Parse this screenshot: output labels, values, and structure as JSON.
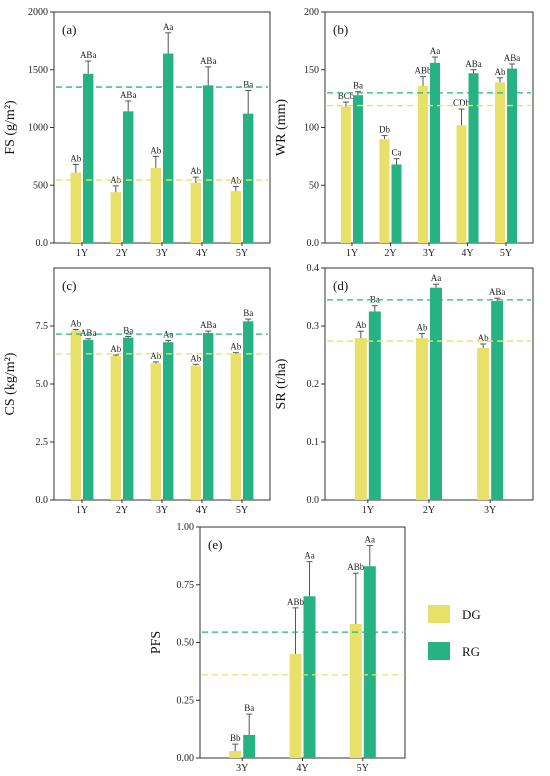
{
  "colors": {
    "DG": "#e7e16a",
    "RG": "#27b283",
    "axis": "#333333",
    "error": "#555555"
  },
  "legend": {
    "items": [
      {
        "key": "DG",
        "label": "DG",
        "color": "#e7e16a"
      },
      {
        "key": "RG",
        "label": "RG",
        "color": "#27b283"
      }
    ]
  },
  "chart_data": [
    {
      "panel": "(a)",
      "type": "bar",
      "ylabel": "FS (g/m²)",
      "categories": [
        "1Y",
        "2Y",
        "3Y",
        "4Y",
        "5Y"
      ],
      "ylim": [
        0,
        2000
      ],
      "yticks": [
        0,
        500,
        1000,
        1500,
        2000
      ],
      "ytick_labels": [
        "0.0",
        "500",
        "1000",
        "1500",
        "2000"
      ],
      "series": [
        {
          "name": "DG",
          "values": [
            610,
            440,
            650,
            520,
            450
          ],
          "errors": [
            70,
            55,
            100,
            50,
            40
          ],
          "labels": [
            "Ab",
            "Ab",
            "Ab",
            "Ab",
            "Ab"
          ]
        },
        {
          "name": "RG",
          "values": [
            1465,
            1140,
            1640,
            1365,
            1120
          ],
          "errors": [
            110,
            90,
            180,
            160,
            200
          ],
          "labels": [
            "ABa",
            "ABa",
            "Aa",
            "ABa",
            "Ba"
          ]
        }
      ],
      "reference_lines": {
        "DG": 545,
        "RG": 1350
      }
    },
    {
      "panel": "(b)",
      "type": "bar",
      "ylabel": "WR (mm)",
      "categories": [
        "1Y",
        "2Y",
        "3Y",
        "4Y",
        "5Y"
      ],
      "ylim": [
        0,
        200
      ],
      "yticks": [
        0,
        50,
        100,
        150,
        200
      ],
      "ytick_labels": [
        "0.0",
        "50",
        "100",
        "150",
        "200"
      ],
      "series": [
        {
          "name": "DG",
          "values": [
            118,
            90,
            136,
            102,
            139
          ],
          "errors": [
            4,
            3,
            8,
            14,
            4
          ],
          "labels": [
            "BCb",
            "Db",
            "ABb",
            "CDb",
            "Ab"
          ]
        },
        {
          "name": "RG",
          "values": [
            128,
            68,
            156,
            147,
            151
          ],
          "errors": [
            3,
            5,
            5,
            3,
            4
          ],
          "labels": [
            "Ba",
            "Ca",
            "Aa",
            "ABa",
            "ABa"
          ]
        }
      ],
      "reference_lines": {
        "DG": 119,
        "RG": 130
      }
    },
    {
      "panel": "(c)",
      "type": "bar",
      "ylabel": "CS (kg/m²)",
      "categories": [
        "1Y",
        "2Y",
        "3Y",
        "4Y",
        "5Y"
      ],
      "ylim": [
        0,
        10
      ],
      "yticks": [
        0,
        2.5,
        5.0,
        7.5
      ],
      "ytick_labels": [
        "0.0",
        "2.5",
        "5.0",
        "7.5"
      ],
      "series": [
        {
          "name": "DG",
          "values": [
            7.3,
            6.2,
            5.9,
            5.8,
            6.3
          ],
          "errors": [
            0.05,
            0.05,
            0.05,
            0.05,
            0.05
          ],
          "labels": [
            "Ab",
            "Ab",
            "Ab",
            "Ab",
            "Ab"
          ]
        },
        {
          "name": "RG",
          "values": [
            6.9,
            7.0,
            6.8,
            7.2,
            7.7
          ],
          "errors": [
            0.05,
            0.05,
            0.08,
            0.08,
            0.1
          ],
          "labels": [
            "ABa",
            "Ba",
            "Aa",
            "ABa",
            "Ba"
          ]
        }
      ],
      "reference_lines": {
        "DG": 6.3,
        "RG": 7.15
      }
    },
    {
      "panel": "(d)",
      "type": "bar",
      "ylabel": "SR (t/ha)",
      "categories": [
        "1Y",
        "2Y",
        "3Y"
      ],
      "ylim": [
        0,
        0.4
      ],
      "yticks": [
        0,
        0.1,
        0.2,
        0.3,
        0.4
      ],
      "ytick_labels": [
        "0.0",
        "0.1",
        "0.2",
        "0.3",
        "0.4"
      ],
      "series": [
        {
          "name": "DG",
          "values": [
            0.279,
            0.279,
            0.262
          ],
          "errors": [
            0.012,
            0.008,
            0.007
          ],
          "labels": [
            "Ab",
            "Ab",
            "Ab"
          ]
        },
        {
          "name": "RG",
          "values": [
            0.325,
            0.366,
            0.343
          ],
          "errors": [
            0.01,
            0.006,
            0.005
          ],
          "labels": [
            "Ba",
            "Aa",
            "ABa"
          ]
        }
      ],
      "reference_lines": {
        "DG": 0.274,
        "RG": 0.345
      }
    },
    {
      "panel": "(e)",
      "type": "bar",
      "ylabel": "PFS",
      "categories": [
        "3Y",
        "4Y",
        "5Y"
      ],
      "ylim": [
        0,
        1.0
      ],
      "yticks": [
        0,
        0.25,
        0.5,
        0.75,
        1.0
      ],
      "ytick_labels": [
        "0.00",
        "0.25",
        "0.50",
        "0.75",
        "1.00"
      ],
      "series": [
        {
          "name": "DG",
          "values": [
            0.03,
            0.45,
            0.58
          ],
          "errors": [
            0.03,
            0.2,
            0.22
          ],
          "labels": [
            "Bb",
            "ABb",
            "ABb"
          ]
        },
        {
          "name": "RG",
          "values": [
            0.1,
            0.7,
            0.83
          ],
          "errors": [
            0.09,
            0.15,
            0.09
          ],
          "labels": [
            "Ba",
            "Aa",
            "Aa"
          ]
        }
      ],
      "reference_lines": {
        "DG": 0.36,
        "RG": 0.545
      }
    }
  ]
}
